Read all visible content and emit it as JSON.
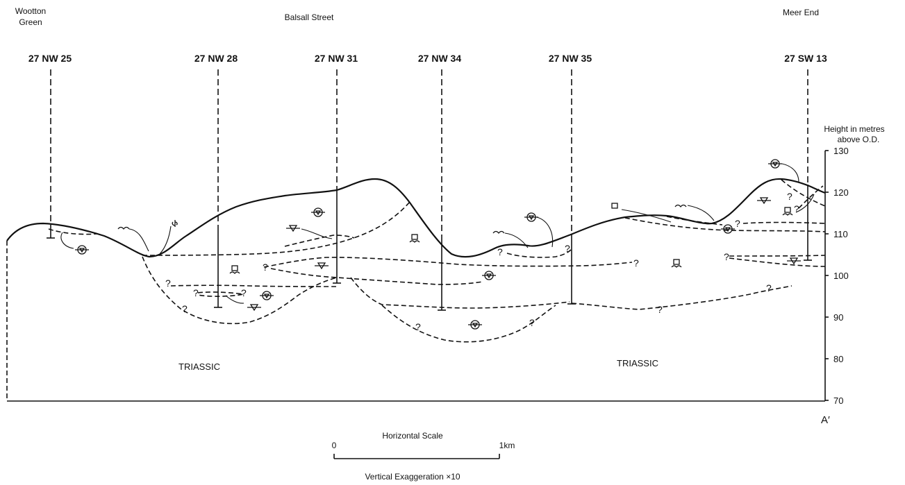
{
  "places": {
    "left": [
      "Wootton",
      "Green"
    ],
    "middle": "Balsall Street",
    "right": "Meer End"
  },
  "boreholes": [
    "27 NW 25",
    "27 NW 28",
    "27 NW 31",
    "27 NW 34",
    "27 NW 35",
    "27 SW 13"
  ],
  "axis": {
    "title_line1": "Height in metres",
    "title_line2": "above O.D.",
    "ticks": [
      "130",
      "120",
      "110",
      "100",
      "90",
      "80",
      "70"
    ]
  },
  "formation_label": "TRIASSIC",
  "uncertain_mark": "?",
  "section_end_label": "A′",
  "scale_bar": {
    "title": "Horizontal Scale",
    "start_label": "0",
    "end_label": "1km"
  },
  "exaggeration_note": "Vertical Exaggeration  ×10",
  "colors": {
    "ink": "#111111",
    "paper": "#ffffff"
  },
  "symbol_types": [
    "sand-and-gravel-symbol",
    "clay-symbol",
    "silt-symbol",
    "peat-symbol",
    "wave-symbol"
  ]
}
